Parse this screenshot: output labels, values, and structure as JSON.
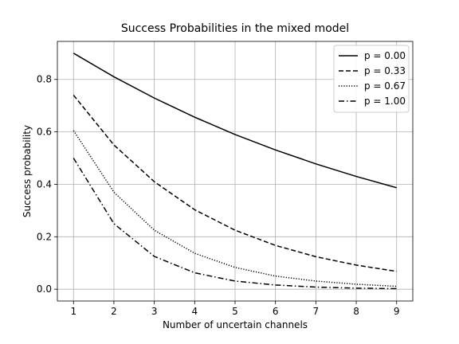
{
  "chart_data": {
    "type": "line",
    "title": "Success Probabilities in the mixed model",
    "xlabel": "Number of uncertain channels",
    "ylabel": "Success probability",
    "x": [
      1,
      2,
      3,
      4,
      5,
      6,
      7,
      8,
      9
    ],
    "xlim": [
      0.6,
      9.4
    ],
    "ylim": [
      -0.045,
      0.945
    ],
    "xticks": [
      1,
      2,
      3,
      4,
      5,
      6,
      7,
      8,
      9
    ],
    "yticks": [
      0.0,
      0.2,
      0.4,
      0.6,
      0.8
    ],
    "ytick_labels": [
      "0.0",
      "0.2",
      "0.4",
      "0.6",
      "0.8"
    ],
    "grid": true,
    "legend_position": "top-right",
    "series": [
      {
        "name": "p = 0.00",
        "style": "solid",
        "values": [
          0.9,
          0.81,
          0.729,
          0.656,
          0.59,
          0.531,
          0.478,
          0.43,
          0.387
        ]
      },
      {
        "name": "p = 0.33",
        "style": "dashed",
        "values": [
          0.74,
          0.55,
          0.41,
          0.303,
          0.225,
          0.167,
          0.124,
          0.092,
          0.068
        ]
      },
      {
        "name": "p = 0.67",
        "style": "dotted",
        "values": [
          0.605,
          0.37,
          0.225,
          0.137,
          0.083,
          0.05,
          0.031,
          0.019,
          0.011
        ]
      },
      {
        "name": "p = 1.00",
        "style": "dashdot",
        "values": [
          0.5,
          0.25,
          0.125,
          0.0625,
          0.031,
          0.016,
          0.008,
          0.004,
          0.002
        ]
      }
    ],
    "colors": {
      "line": "#000000",
      "grid": "#b0b0b0",
      "axis": "#000000"
    }
  }
}
